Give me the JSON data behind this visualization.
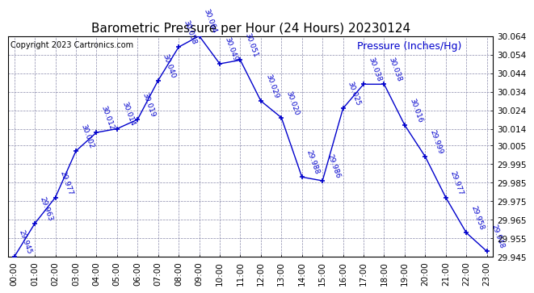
{
  "title": "Barometric Pressure per Hour (24 Hours) 20230124",
  "ylabel": "Pressure (Inches/Hg)",
  "copyright_text": "Copyright 2023 Cartronics.com",
  "hours": [
    0,
    1,
    2,
    3,
    4,
    5,
    6,
    7,
    8,
    9,
    10,
    11,
    12,
    13,
    14,
    15,
    16,
    17,
    18,
    19,
    20,
    21,
    22,
    23
  ],
  "xlabels": [
    "00:00",
    "01:00",
    "02:00",
    "03:00",
    "04:00",
    "05:00",
    "06:00",
    "07:00",
    "08:00",
    "09:00",
    "10:00",
    "11:00",
    "12:00",
    "13:00",
    "14:00",
    "15:00",
    "16:00",
    "17:00",
    "18:00",
    "19:00",
    "20:00",
    "21:00",
    "22:00",
    "23:00"
  ],
  "values": [
    29.945,
    29.963,
    29.977,
    30.002,
    30.012,
    30.014,
    30.019,
    30.04,
    30.058,
    30.064,
    30.049,
    30.051,
    30.029,
    30.02,
    29.988,
    29.986,
    30.025,
    30.038,
    30.038,
    30.016,
    29.999,
    29.977,
    29.958,
    29.948
  ],
  "ylim_min": 29.945,
  "ylim_max": 30.064,
  "yticks": [
    29.945,
    29.955,
    29.965,
    29.975,
    29.985,
    29.995,
    30.005,
    30.014,
    30.024,
    30.034,
    30.044,
    30.054,
    30.064
  ],
  "line_color": "#0000cc",
  "marker_color": "#0000cc",
  "title_color": "#000000",
  "label_color": "#0000cc",
  "copyright_color": "#000000",
  "ylabel_color": "#0000cc",
  "bg_color": "#ffffff",
  "grid_color": "#8888aa",
  "title_fontsize": 11,
  "label_fontsize": 6.5,
  "ylabel_fontsize": 9,
  "copyright_fontsize": 7,
  "tick_fontsize": 7.5
}
